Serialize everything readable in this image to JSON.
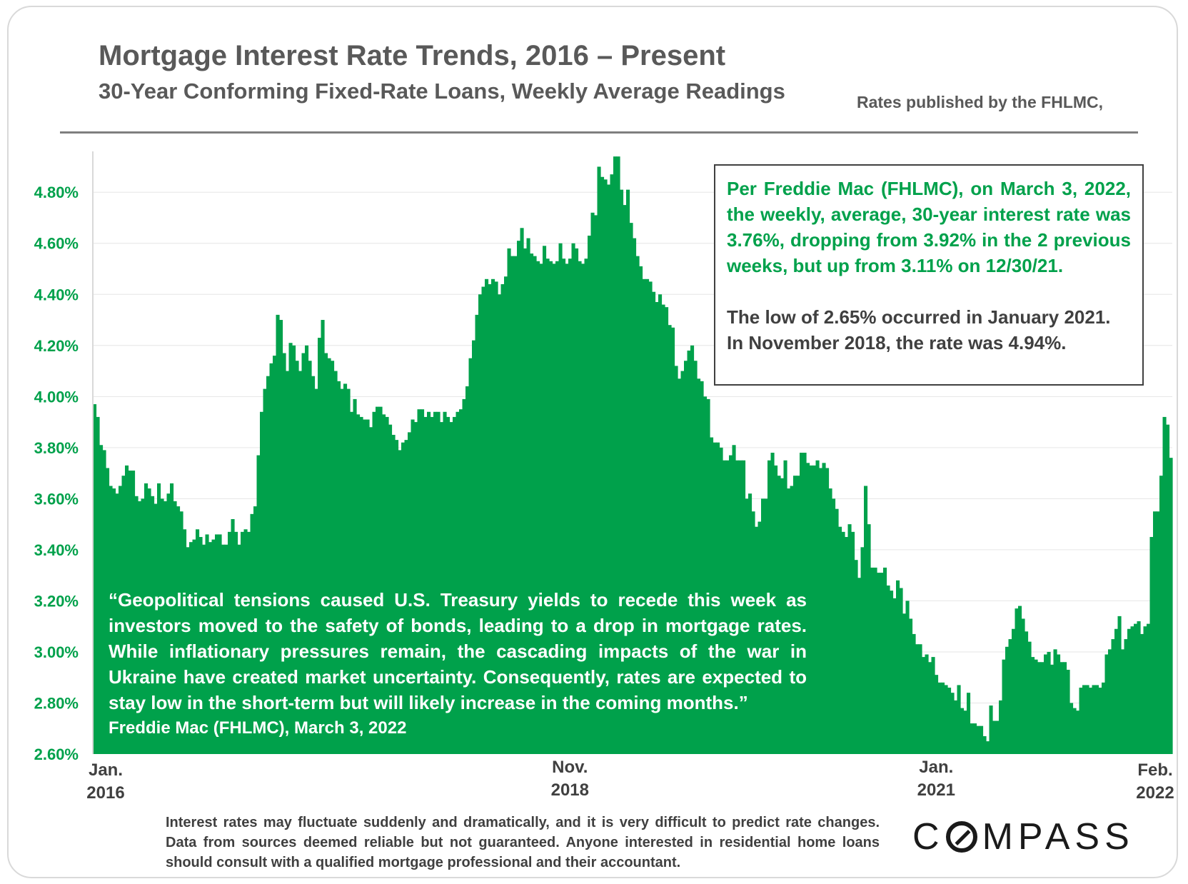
{
  "header": {
    "title": "Mortgage Interest Rate Trends, 2016 – Present",
    "subtitle": "30-Year Conforming Fixed-Rate Loans, Weekly Average Readings",
    "source": "Rates published by the FHLMC,"
  },
  "info_box": {
    "main": "Per Freddie Mac (FHLMC), on March 3, 2022, the weekly, average, 30-year interest rate was 3.76%, dropping from 3.92% in the 2 previous weeks, but up from 3.11% on 12/30/21.",
    "low_line1": "The low of 2.65% occurred in January 2021.",
    "low_line2": "In November 2018, the rate was 4.94%."
  },
  "quote": {
    "text": "“Geopolitical tensions caused U.S. Treasury yields to recede this week as investors moved to the safety of bonds, leading to a drop in mortgage rates. While inflationary pressures remain, the cascading impacts of the war in Ukraine have created market uncertainty. Consequently, rates are expected to stay low in the short-term but will likely increase in the coming months.”",
    "source": "Freddie Mac (FHLMC), March 3, 2022"
  },
  "footer": {
    "disclaimer": "Interest rates may fluctuate suddenly and dramatically, and it is very difficult to predict rate changes. Data from sources deemed reliable but not guaranteed. Anyone interested in residential home loans should consult with a qualified mortgage professional and their accountant.",
    "logo_text_a": "C",
    "logo_text_b": "MPASS"
  },
  "colors": {
    "bar": "#00a14b",
    "accent_text": "#00a14b",
    "title_text": "#595959",
    "gridline": "#e6e6e6"
  },
  "chart_data": {
    "type": "bar",
    "title": "Mortgage Interest Rate Trends, 2016 – Present",
    "subtitle": "30-Year Conforming Fixed-Rate Loans, Weekly Average Readings",
    "xlabel": "",
    "ylabel": "",
    "ylim": [
      2.6,
      4.96
    ],
    "y_ticks": [
      "2.60%",
      "2.80%",
      "3.00%",
      "3.20%",
      "3.40%",
      "3.60%",
      "3.80%",
      "4.00%",
      "4.20%",
      "4.40%",
      "4.60%",
      "4.80%"
    ],
    "y_tick_values": [
      2.6,
      2.8,
      3.0,
      3.2,
      3.4,
      3.6,
      3.8,
      4.0,
      4.2,
      4.4,
      4.6,
      4.8
    ],
    "x_labels": [
      {
        "line1": "Jan.",
        "line2": "2016",
        "week": 0
      },
      {
        "line1": "Nov.",
        "line2": "2018",
        "week": 148
      },
      {
        "line1": "Jan.",
        "line2": "2021",
        "week": 262
      },
      {
        "line1": "Feb.",
        "line2": "2022",
        "week": 321
      }
    ],
    "grid": true,
    "series": [
      {
        "values": [
          3.97,
          3.92,
          3.81,
          3.79,
          3.72,
          3.65,
          3.64,
          3.62,
          3.65,
          3.69,
          3.73,
          3.71,
          3.71,
          3.61,
          3.59,
          3.6,
          3.66,
          3.64,
          3.61,
          3.58,
          3.66,
          3.6,
          3.59,
          3.62,
          3.66,
          3.59,
          3.57,
          3.55,
          3.48,
          3.41,
          3.43,
          3.44,
          3.48,
          3.45,
          3.42,
          3.46,
          3.43,
          3.44,
          3.46,
          3.46,
          3.42,
          3.42,
          3.47,
          3.52,
          3.47,
          3.42,
          3.47,
          3.48,
          3.47,
          3.54,
          3.57,
          3.77,
          3.94,
          4.03,
          4.08,
          4.13,
          4.16,
          4.32,
          4.3,
          4.17,
          4.1,
          4.21,
          4.2,
          4.14,
          4.1,
          4.17,
          4.2,
          4.14,
          4.08,
          4.03,
          4.23,
          4.3,
          4.17,
          4.15,
          4.14,
          4.1,
          4.06,
          4.03,
          4.05,
          4.03,
          3.94,
          3.99,
          3.93,
          3.92,
          3.91,
          3.91,
          3.88,
          3.94,
          3.96,
          3.96,
          3.93,
          3.92,
          3.89,
          3.85,
          3.83,
          3.79,
          3.82,
          3.83,
          3.86,
          3.91,
          3.9,
          3.95,
          3.95,
          3.92,
          3.94,
          3.92,
          3.94,
          3.94,
          3.9,
          3.94,
          3.92,
          3.9,
          3.92,
          3.94,
          3.95,
          3.99,
          4.04,
          4.15,
          4.22,
          4.32,
          4.4,
          4.43,
          4.46,
          4.44,
          4.46,
          4.45,
          4.4,
          4.44,
          4.47,
          4.58,
          4.55,
          4.55,
          4.61,
          4.66,
          4.58,
          4.62,
          4.56,
          4.55,
          4.53,
          4.52,
          4.59,
          4.54,
          4.53,
          4.52,
          4.53,
          4.6,
          4.54,
          4.52,
          4.54,
          4.6,
          4.58,
          4.53,
          4.52,
          4.54,
          4.63,
          4.72,
          4.71,
          4.9,
          4.86,
          4.85,
          4.83,
          4.87,
          4.94,
          4.94,
          4.81,
          4.75,
          4.81,
          4.68,
          4.62,
          4.55,
          4.51,
          4.46,
          4.46,
          4.45,
          4.41,
          4.37,
          4.4,
          4.36,
          4.35,
          4.28,
          4.27,
          4.12,
          4.07,
          4.1,
          4.14,
          4.18,
          4.2,
          4.14,
          4.07,
          4.06,
          4.0,
          3.99,
          3.84,
          3.82,
          3.82,
          3.8,
          3.75,
          3.75,
          3.77,
          3.81,
          3.75,
          3.75,
          3.75,
          3.6,
          3.62,
          3.55,
          3.49,
          3.51,
          3.6,
          3.6,
          3.75,
          3.78,
          3.73,
          3.69,
          3.68,
          3.75,
          3.64,
          3.65,
          3.69,
          3.69,
          3.78,
          3.78,
          3.74,
          3.73,
          3.73,
          3.75,
          3.72,
          3.74,
          3.72,
          3.64,
          3.6,
          3.56,
          3.49,
          3.47,
          3.45,
          3.5,
          3.47,
          3.36,
          3.29,
          3.41,
          3.65,
          3.5,
          3.33,
          3.33,
          3.31,
          3.31,
          3.33,
          3.26,
          3.24,
          3.21,
          3.28,
          3.25,
          3.15,
          3.2,
          3.13,
          3.07,
          3.03,
          3.03,
          2.98,
          2.99,
          2.96,
          2.98,
          2.91,
          2.88,
          2.88,
          2.87,
          2.86,
          2.84,
          2.81,
          2.87,
          2.78,
          2.77,
          2.84,
          2.72,
          2.72,
          2.71,
          2.71,
          2.67,
          2.65,
          2.79,
          2.73,
          2.73,
          2.81,
          2.97,
          3.02,
          3.05,
          3.09,
          3.17,
          3.18,
          3.13,
          3.08,
          3.04,
          2.98,
          2.97,
          2.96,
          2.96,
          2.99,
          3.0,
          2.95,
          3.01,
          2.99,
          2.96,
          2.96,
          2.93,
          2.8,
          2.78,
          2.77,
          2.86,
          2.87,
          2.87,
          2.86,
          2.87,
          2.87,
          2.86,
          2.88,
          2.99,
          3.01,
          3.05,
          3.09,
          3.14,
          3.01,
          3.05,
          3.09,
          3.1,
          3.11,
          3.12,
          3.07,
          3.1,
          3.11,
          3.45,
          3.55,
          3.55,
          3.69,
          3.92,
          3.89,
          3.76
        ]
      }
    ]
  }
}
